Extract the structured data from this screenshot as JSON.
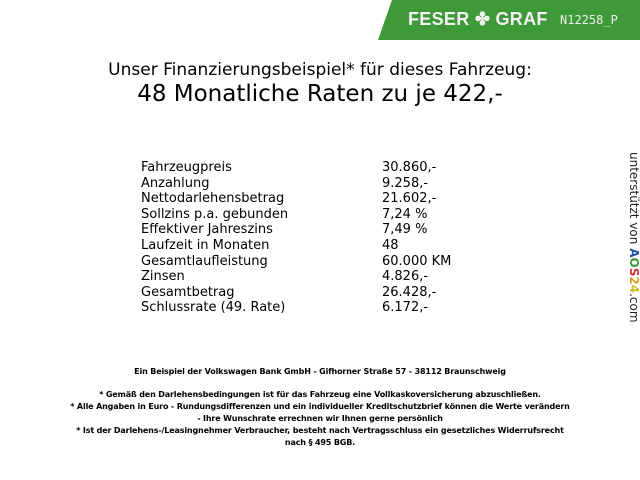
{
  "header": {
    "brand": "FESER ✤ GRAF",
    "code": "N12258_P",
    "brand_color": "#3e9a39"
  },
  "title": {
    "line1": "Unser Finanzierungsbeispiel* für dieses Fahrzeug:",
    "line2": "48 Monatliche Raten zu je 422,-"
  },
  "rows": [
    {
      "label": "Fahrzeugpreis",
      "value": "30.860,-"
    },
    {
      "label": "Anzahlung",
      "value": "9.258,-"
    },
    {
      "label": "Nettodarlehensbetrag",
      "value": "21.602,-"
    },
    {
      "label": "Sollzins p.a. gebunden",
      "value": "7,24 %"
    },
    {
      "label": "Effektiver Jahreszins",
      "value": "7,49 %"
    },
    {
      "label": "Laufzeit in Monaten",
      "value": "48"
    },
    {
      "label": "Gesamtlaufleistung",
      "value": "60.000 KM"
    },
    {
      "label": "Zinsen",
      "value": "4.826,-"
    },
    {
      "label": "Gesamtbetrag",
      "value": "26.428,-"
    },
    {
      "label": "Schlussrate (49. Rate)",
      "value": "6.172,-"
    }
  ],
  "side": {
    "text": "unterstützt von",
    "logo": "AOS24",
    "suffix": ".com"
  },
  "footer": {
    "bank": "Ein Beispiel der Volkswagen Bank GmbH - Gifhorner Straße 57 - 38112 Braunschweig",
    "note1": "* Gemäß den Darlehensbedingungen ist für das Fahrzeug eine Vollkaskoversicherung abzuschließen.",
    "note2a": "* Alle Angaben in Euro - Rundungsdifferenzen und ein individueller Kreditschutzbrief können die Werte verändern",
    "note2b": "- Ihre Wunschrate errechnen wir Ihnen gerne persönlich",
    "note3a": "* Ist der Darlehens-/Leasingnehmer Verbraucher, besteht nach Vertragsschluss ein gesetzliches Widerrufsrecht",
    "note3b": "nach § 495 BGB."
  }
}
